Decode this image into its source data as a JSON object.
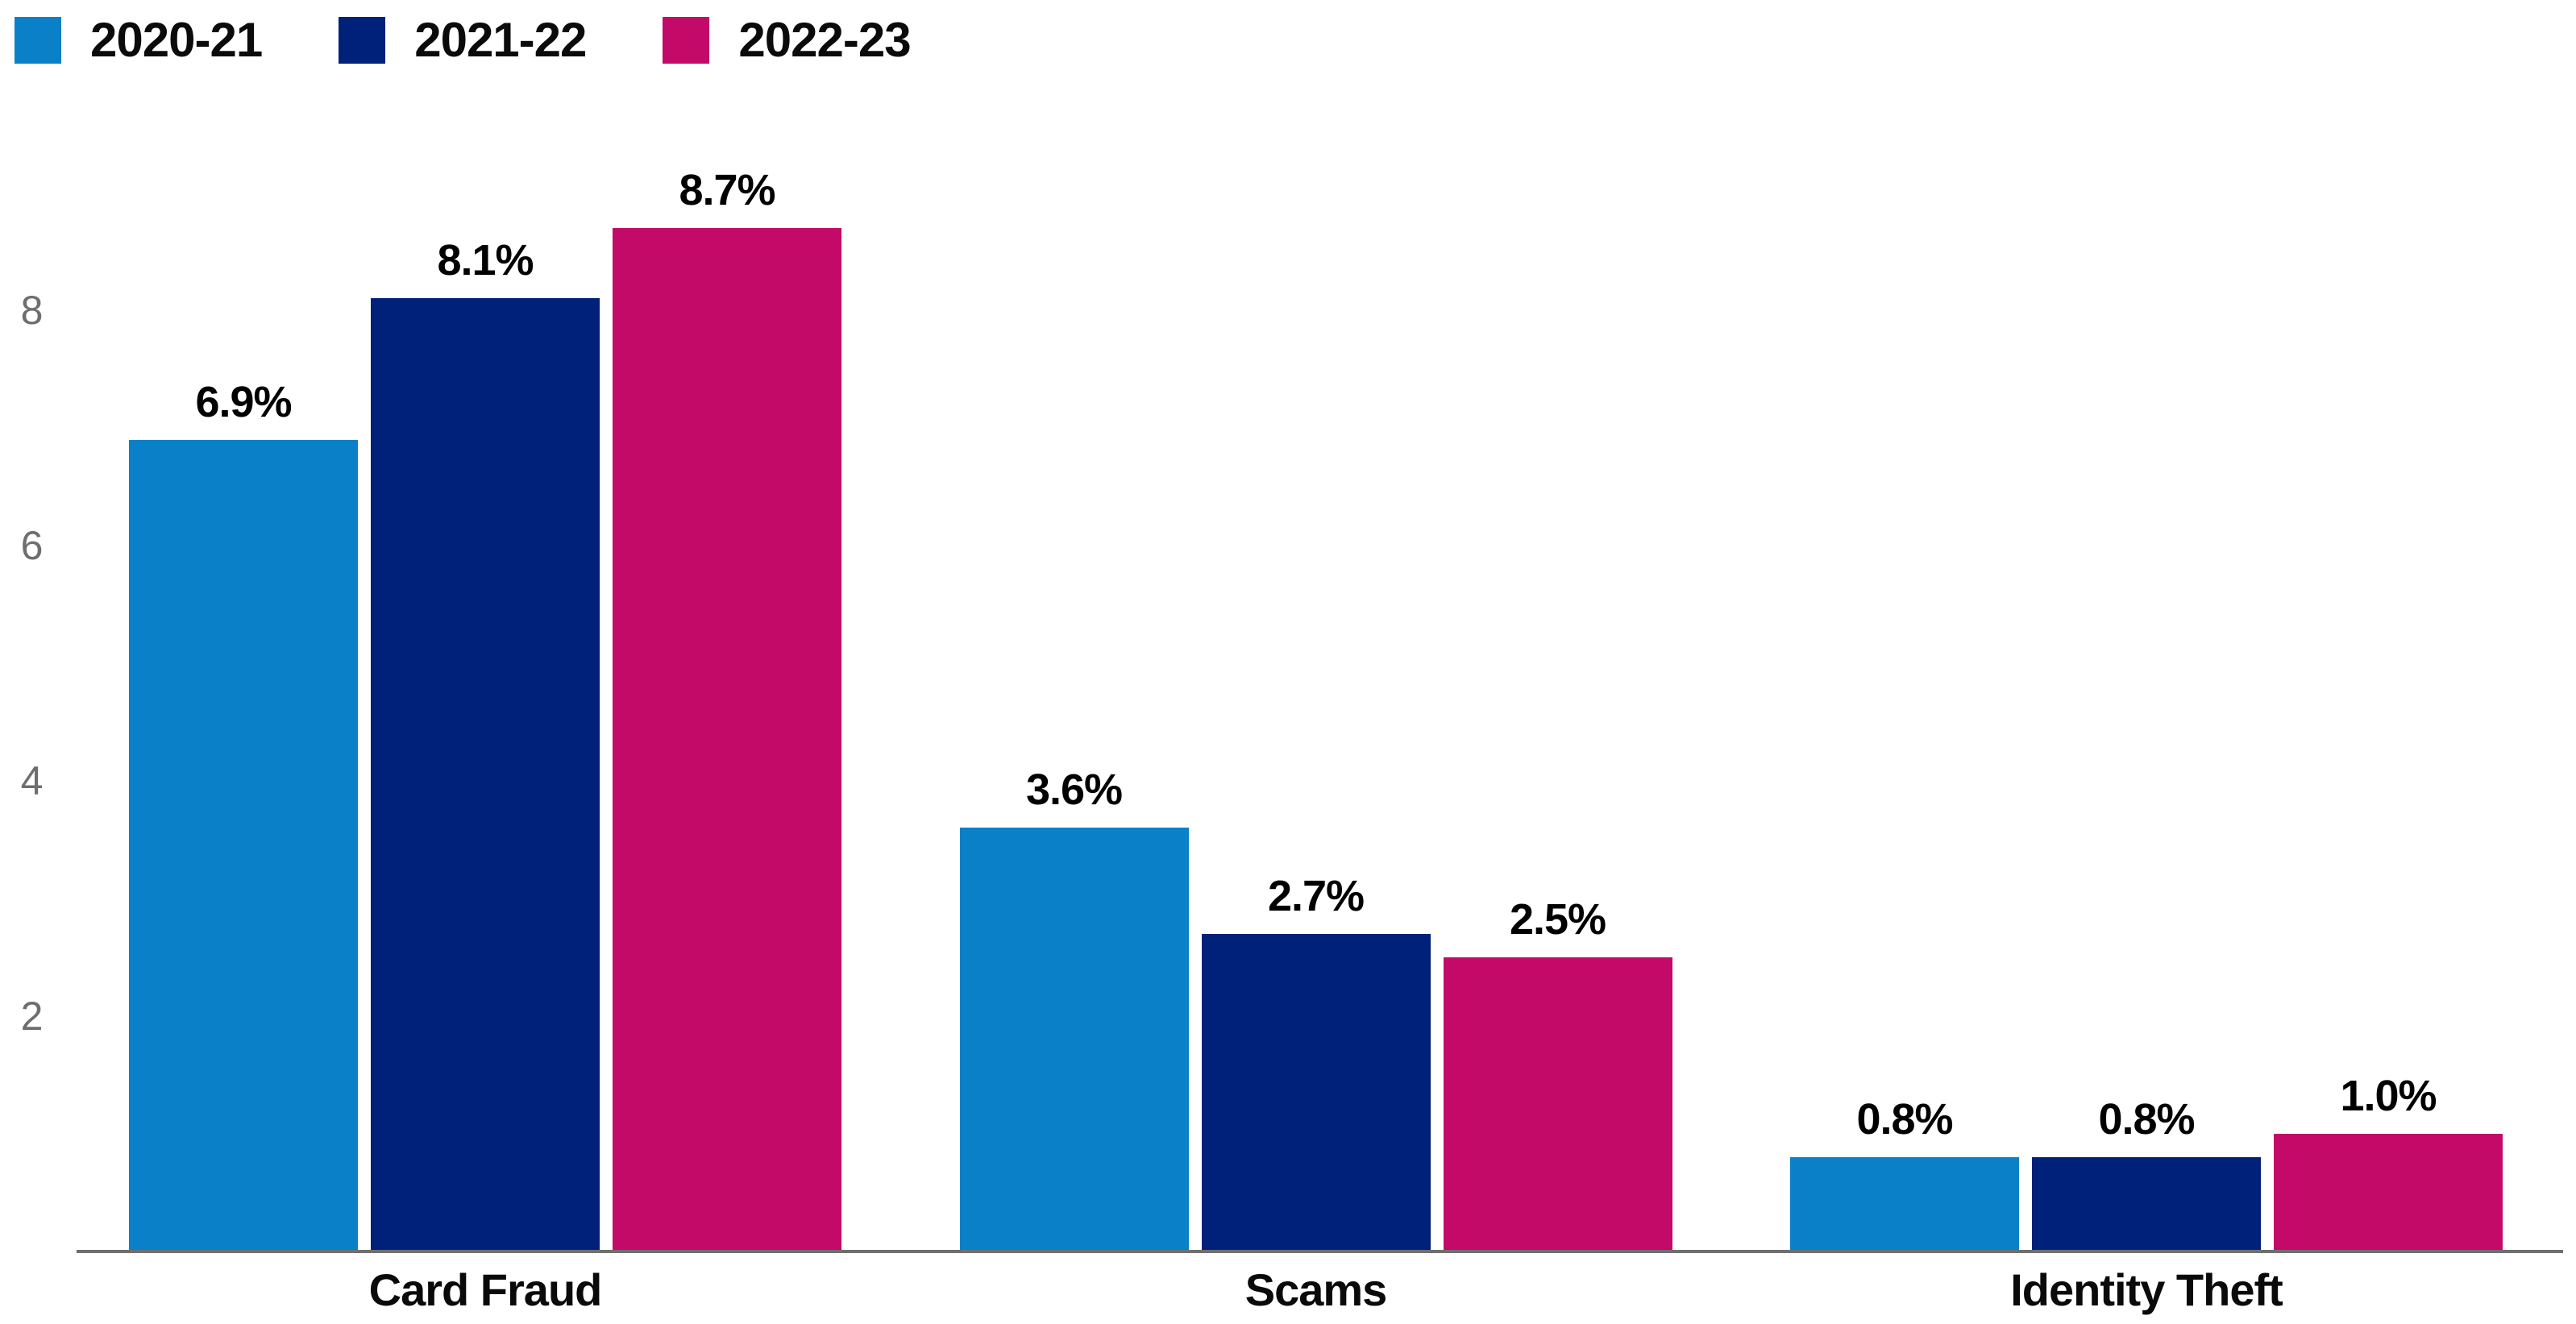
{
  "chart_data": {
    "type": "bar",
    "title": "",
    "categories": [
      "Card Fraud",
      "Scams",
      "Identity Theft"
    ],
    "series": [
      {
        "name": "2020-21",
        "color": "#0a80c8",
        "values": [
          6.9,
          3.6,
          0.8
        ],
        "labels": [
          "6.9%",
          "3.6%",
          "0.8%"
        ]
      },
      {
        "name": "2021-22",
        "color": "#00217a",
        "values": [
          8.1,
          2.7,
          0.8
        ],
        "labels": [
          "8.1%",
          "2.7%",
          "0.8%"
        ]
      },
      {
        "name": "2022-23",
        "color": "#c40a68",
        "values": [
          8.7,
          2.5,
          1.0
        ],
        "labels": [
          "8.7%",
          "2.5%",
          "1.0%"
        ]
      }
    ],
    "value_suffix": "%",
    "yticks": [
      2,
      4,
      6,
      8
    ],
    "ylim": [
      0,
      9
    ],
    "grid": false,
    "data_labels": true,
    "legend_position": "top-left",
    "xlabel": "",
    "ylabel": "",
    "colors": {
      "axis_line": "#6f6f6f",
      "tick_label": "#6e6e6e",
      "data_label": "#000000",
      "background": "#ffffff"
    }
  }
}
